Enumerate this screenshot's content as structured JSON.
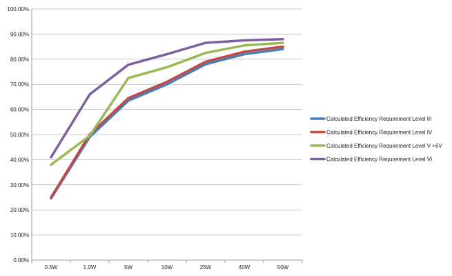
{
  "chart_data": {
    "type": "line",
    "title": "",
    "xlabel": "",
    "ylabel": "",
    "categories": [
      "0.5W",
      "1.0W",
      "5W",
      "10W",
      "25W",
      "40W",
      "50W"
    ],
    "ylim": [
      0,
      100
    ],
    "y_ticks": [
      "0.00%",
      "10.00%",
      "20.00%",
      "30.00%",
      "40.00%",
      "50.00%",
      "60.00%",
      "70.00%",
      "80.00%",
      "90.00%",
      "100.00%"
    ],
    "grid": "horizontal",
    "legend_position": "right",
    "series": [
      {
        "name": "Calculated Efficiency Requirement Level III",
        "color": "#4a7ebb",
        "values": [
          24.6,
          49.0,
          63.5,
          70.0,
          78.0,
          82.0,
          84.0
        ]
      },
      {
        "name": "Calculated Efficiency Requirement Level IV",
        "color": "#be4b48",
        "values": [
          25.0,
          50.0,
          64.5,
          71.0,
          79.0,
          83.0,
          85.0
        ]
      },
      {
        "name": "Calculated Efficiency Requirement Level V >6V",
        "color": "#98b954",
        "values": [
          38.0,
          49.5,
          72.5,
          76.8,
          82.5,
          85.5,
          86.5
        ]
      },
      {
        "name": "Calculated Efficiency Requirement Level VI",
        "color": "#7d60a0",
        "values": [
          41.0,
          66.0,
          77.8,
          82.0,
          86.5,
          87.5,
          88.0
        ]
      }
    ]
  }
}
